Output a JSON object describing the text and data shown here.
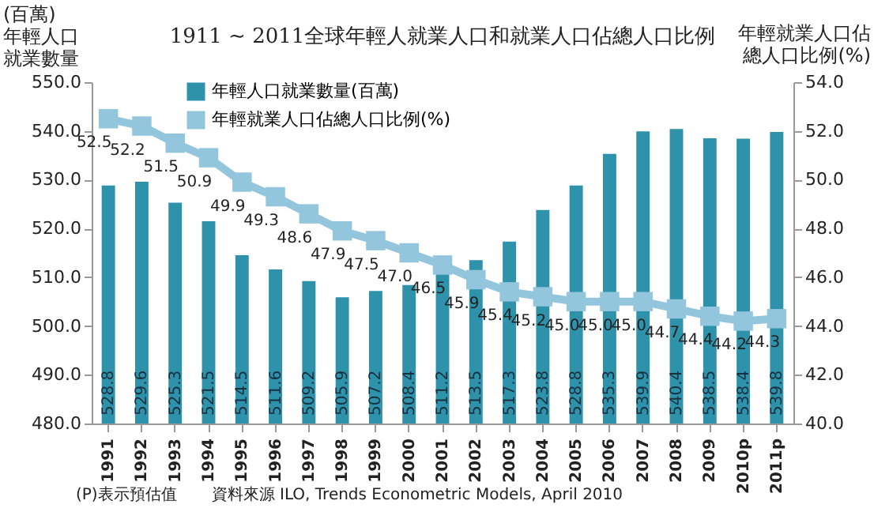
{
  "chart_data": {
    "type": "bar",
    "title": "1911 ~ 2011全球年輕人就業人口和就業人口佔總人口比例",
    "ylabel": "(百萬)年輕人口就業數量",
    "y2label": "年輕就業人口佔總人口比例(%)",
    "categories": [
      "1991",
      "1992",
      "1993",
      "1994",
      "1995",
      "1996",
      "1997",
      "1998",
      "1999",
      "2000",
      "2001",
      "2002",
      "2003",
      "2004",
      "2005",
      "2006",
      "2007",
      "2008",
      "2009",
      "2010p",
      "2011p"
    ],
    "series": [
      {
        "name": "年輕人口就業數量(百萬)",
        "color": "#2e93aa",
        "values": [
          528.8,
          529.6,
          525.3,
          521.5,
          514.5,
          511.6,
          509.2,
          505.9,
          507.2,
          508.4,
          511.2,
          513.5,
          517.3,
          523.8,
          528.8,
          535.3,
          539.9,
          540.4,
          538.5,
          538.4,
          539.8
        ],
        "value_labels": [
          "528.8",
          "529.6",
          "525.3",
          "521.5",
          "514.5",
          "511.6",
          "509.2",
          "505.9",
          "507.2",
          "508.4",
          "511.2",
          "513.5",
          "517.3",
          "523.8",
          "528.8",
          "535.3",
          "539.9",
          "540.4",
          "538.5",
          "538.4",
          "539.8"
        ]
      },
      {
        "name": "年輕就業人口佔總人口比例(%)",
        "type": "line",
        "axis": "y2",
        "color": "#93c6dc",
        "values": [
          52.5,
          52.2,
          51.5,
          50.9,
          49.9,
          49.3,
          48.6,
          47.9,
          47.5,
          47.0,
          46.5,
          45.9,
          45.4,
          45.2,
          45.0,
          45.0,
          45.0,
          44.7,
          44.4,
          44.2,
          44.3
        ],
        "value_labels": [
          "52.5",
          "52.2",
          "51.5",
          "50.9",
          "49.9",
          "49.3",
          "48.6",
          "47.9",
          "47.5",
          "47.0",
          "46.5",
          "45.9",
          "45.4",
          "45.2",
          "45.0",
          "45.0",
          "45.0",
          "44.7",
          "44.4",
          "44.2",
          "44.3"
        ]
      }
    ],
    "ylim": [
      480,
      550
    ],
    "yticks": [
      {
        "value": 480,
        "label": "480.0"
      },
      {
        "value": 490,
        "label": "490.0"
      },
      {
        "value": 500,
        "label": "500.0"
      },
      {
        "value": 510,
        "label": "510.0"
      },
      {
        "value": 520,
        "label": "520.0"
      },
      {
        "value": 530,
        "label": "530.0"
      },
      {
        "value": 540,
        "label": "540.0"
      },
      {
        "value": 550,
        "label": "550.0"
      }
    ],
    "y2lim": [
      40,
      54
    ],
    "y2ticks": [
      {
        "value": 40,
        "label": "40.0"
      },
      {
        "value": 42,
        "label": "42.0"
      },
      {
        "value": 44,
        "label": "44.0"
      },
      {
        "value": 46,
        "label": "46.0"
      },
      {
        "value": 48,
        "label": "48.0"
      },
      {
        "value": 50,
        "label": "50.0"
      },
      {
        "value": 52,
        "label": "52.0"
      },
      {
        "value": 54,
        "label": "54.0"
      }
    ],
    "marker": "square",
    "legend": "top left",
    "annotations": [
      "(P)表示預估值",
      "資料來源 ILO, Trends Econometric Models, April 2010"
    ]
  }
}
